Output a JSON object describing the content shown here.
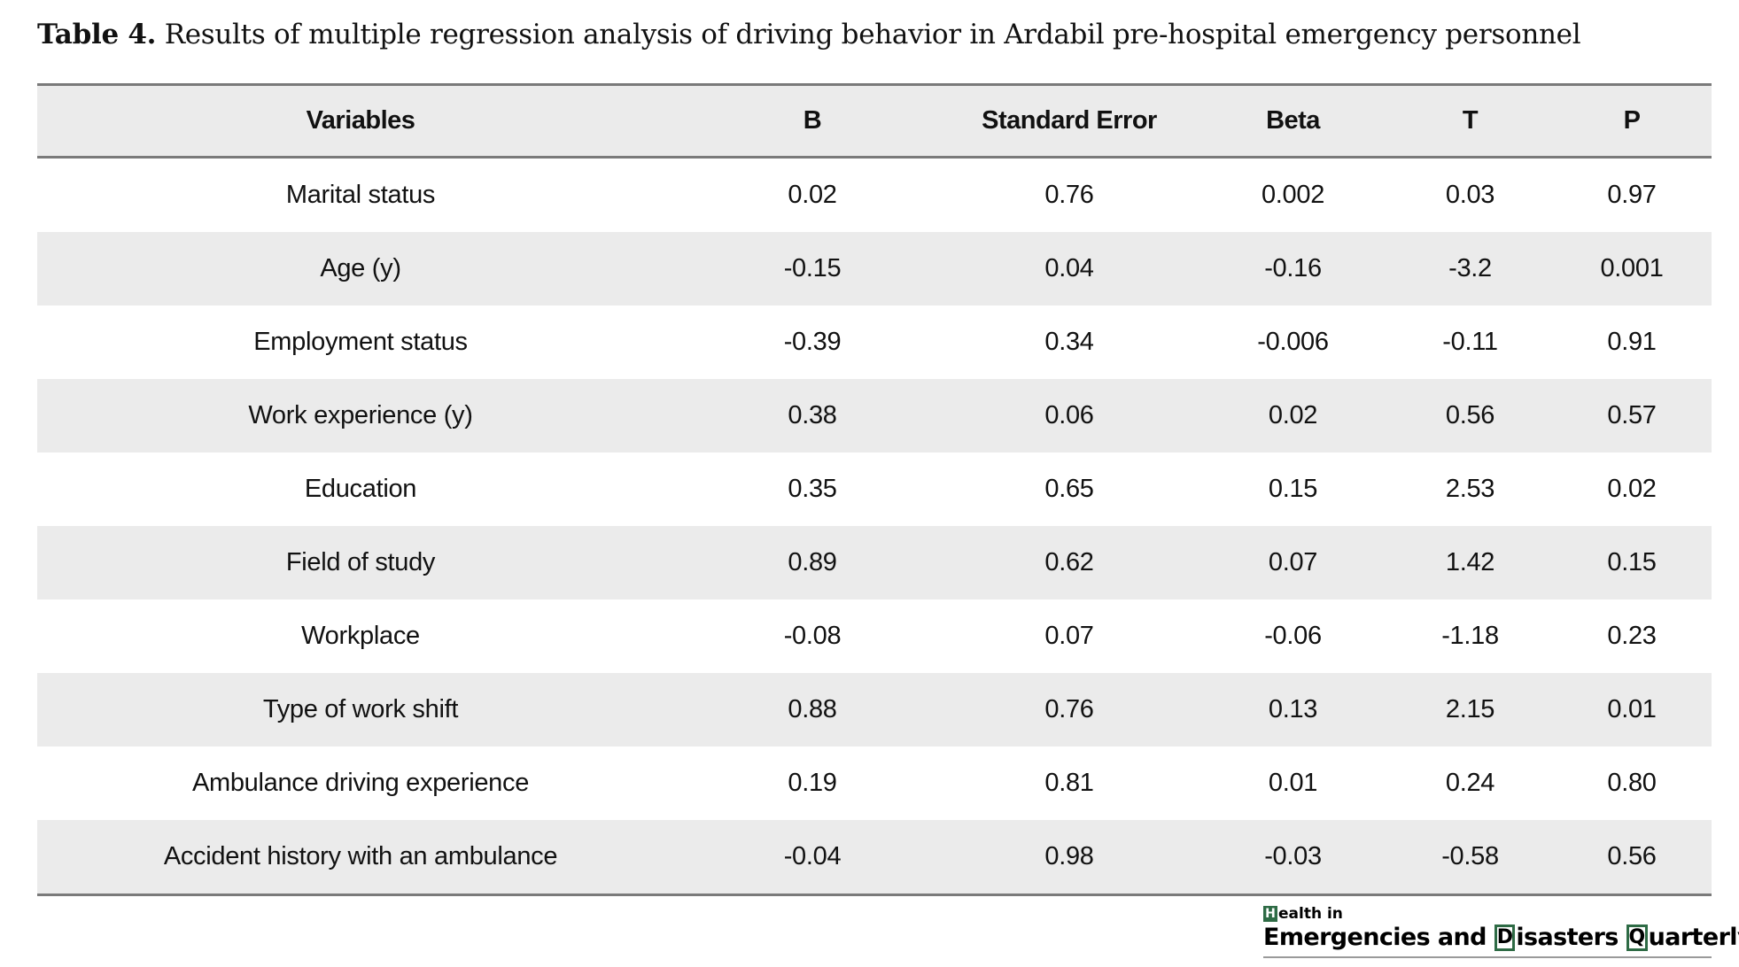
{
  "caption": {
    "label": "Table 4.",
    "text": "Results of multiple regression analysis of driving behavior in Ardabil pre-hospital emergency personnel"
  },
  "table": {
    "headers": [
      "Variables",
      "B",
      "Standard Error",
      "Beta",
      "T",
      "P"
    ],
    "rows": [
      [
        "Marital status",
        "0.02",
        "0.76",
        "0.002",
        "0.03",
        "0.97"
      ],
      [
        "Age (y)",
        "-0.15",
        "0.04",
        "-0.16",
        "-3.2",
        "0.001"
      ],
      [
        "Employment status",
        "-0.39",
        "0.34",
        "-0.006",
        "-0.11",
        "0.91"
      ],
      [
        "Work experience (y)",
        "0.38",
        "0.06",
        "0.02",
        "0.56",
        "0.57"
      ],
      [
        "Education",
        "0.35",
        "0.65",
        "0.15",
        "2.53",
        "0.02"
      ],
      [
        "Field of study",
        "0.89",
        "0.62",
        "0.07",
        "1.42",
        "0.15"
      ],
      [
        "Workplace",
        "-0.08",
        "0.07",
        "-0.06",
        "-1.18",
        "0.23"
      ],
      [
        "Type of work shift",
        "0.88",
        "0.76",
        "0.13",
        "2.15",
        "0.01"
      ],
      [
        "Ambulance driving experience",
        "0.19",
        "0.81",
        "0.01",
        "0.24",
        "0.80"
      ],
      [
        "Accident history with an ambulance",
        "-0.04",
        "0.98",
        "-0.03",
        "-0.58",
        "0.56"
      ]
    ]
  },
  "logo": {
    "line1_initial": "H",
    "line1_rest": "ealth in",
    "line2_part1": "Emergencies and ",
    "line2_initial_d": "D",
    "line2_part2": "isasters ",
    "line2_initial_q": "Q",
    "line2_part3": "uarterly",
    "brand_color": "#2e6b45"
  },
  "colors": {
    "header_bg": "#ebebeb",
    "stripe_bg": "#ebebeb",
    "rule": "#7a7a7a"
  }
}
